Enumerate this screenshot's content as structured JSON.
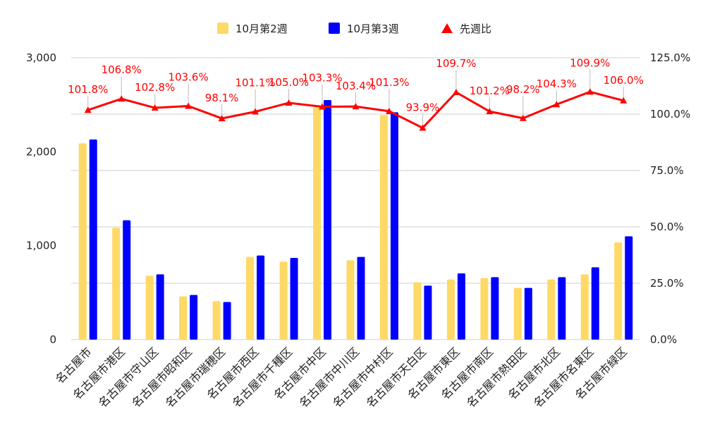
{
  "chart_data": {
    "type": "bar",
    "categories": [
      "名古屋市",
      "名古屋市港区",
      "名古屋市守山区",
      "名古屋市昭和区",
      "名古屋市瑞穂区",
      "名古屋市西区",
      "名古屋市千種区",
      "名古屋市中区",
      "名古屋市中川区",
      "名古屋市中村区",
      "名古屋市天白区",
      "名古屋市東区",
      "名古屋市南区",
      "名古屋市熱田区",
      "名古屋市北区",
      "名古屋市名東区",
      "名古屋市緑区"
    ],
    "series": [
      {
        "name": "10月第2週",
        "type": "bar",
        "axis": "left",
        "color": "#ffd966",
        "values": [
          2090,
          1190,
          680,
          460,
          410,
          880,
          830,
          2470,
          845,
          2390,
          610,
          640,
          655,
          550,
          640,
          695,
          1035
        ]
      },
      {
        "name": "10月第3週",
        "type": "bar",
        "axis": "left",
        "color": "#0000ff",
        "values": [
          2130,
          1270,
          695,
          475,
          400,
          895,
          870,
          2550,
          880,
          2420,
          575,
          705,
          665,
          550,
          665,
          770,
          1100
        ]
      },
      {
        "name": "先週比",
        "type": "line",
        "axis": "right",
        "color": "#ff0000",
        "marker": "triangle",
        "values": [
          101.8,
          106.8,
          102.8,
          103.6,
          98.1,
          101.1,
          105.0,
          103.3,
          103.4,
          101.3,
          93.9,
          109.7,
          101.2,
          98.2,
          104.3,
          109.9,
          106.0
        ],
        "labels": [
          "101.8%",
          "106.8%",
          "102.8%",
          "103.6%",
          "98.1%",
          "101.1%",
          "105.0%",
          "103.3%",
          "103.4%",
          "101.3%",
          "93.9%",
          "109.7%",
          "101.2%",
          "98.2%",
          "104.3%",
          "109.9%",
          "106.0%"
        ]
      }
    ],
    "left_axis": {
      "ylim": [
        0,
        3000
      ],
      "ticks": [
        "0",
        "1,000",
        "2,000",
        "3,000"
      ],
      "tick_values": [
        0,
        1000,
        2000,
        3000
      ]
    },
    "right_axis": {
      "ylim": [
        0,
        125
      ],
      "ticks": [
        "0.0%",
        "25.0%",
        "50.0%",
        "75.0%",
        "100.0%",
        "125.0%"
      ],
      "tick_values": [
        0,
        25,
        50,
        75,
        100,
        125
      ]
    },
    "grid": true,
    "legend_position": "top-center"
  }
}
